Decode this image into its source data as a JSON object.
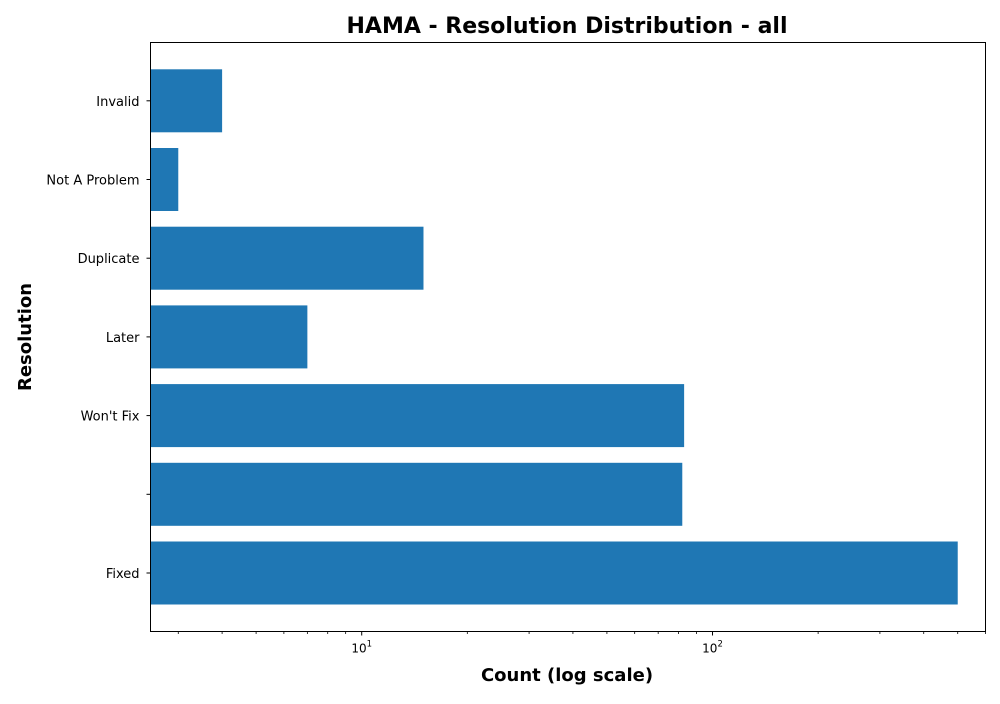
{
  "chart_data": {
    "type": "bar",
    "orientation": "horizontal",
    "title": "HAMA - Resolution Distribution - all",
    "xlabel": "Count (log scale)",
    "ylabel": "Resolution",
    "x_scale": "log",
    "xlim": [
      2.5,
      600
    ],
    "categories": [
      "Fixed",
      "",
      "Won't Fix",
      "Later",
      "Duplicate",
      "Not A Problem",
      "Invalid"
    ],
    "values": [
      500,
      82,
      83,
      7,
      15,
      3,
      4
    ],
    "x_ticks": [
      {
        "value": 10,
        "base": "10",
        "exp": "1"
      },
      {
        "value": 100,
        "base": "10",
        "exp": "2"
      }
    ],
    "bar_color": "#1f77b4",
    "grid": false,
    "legend": false
  }
}
